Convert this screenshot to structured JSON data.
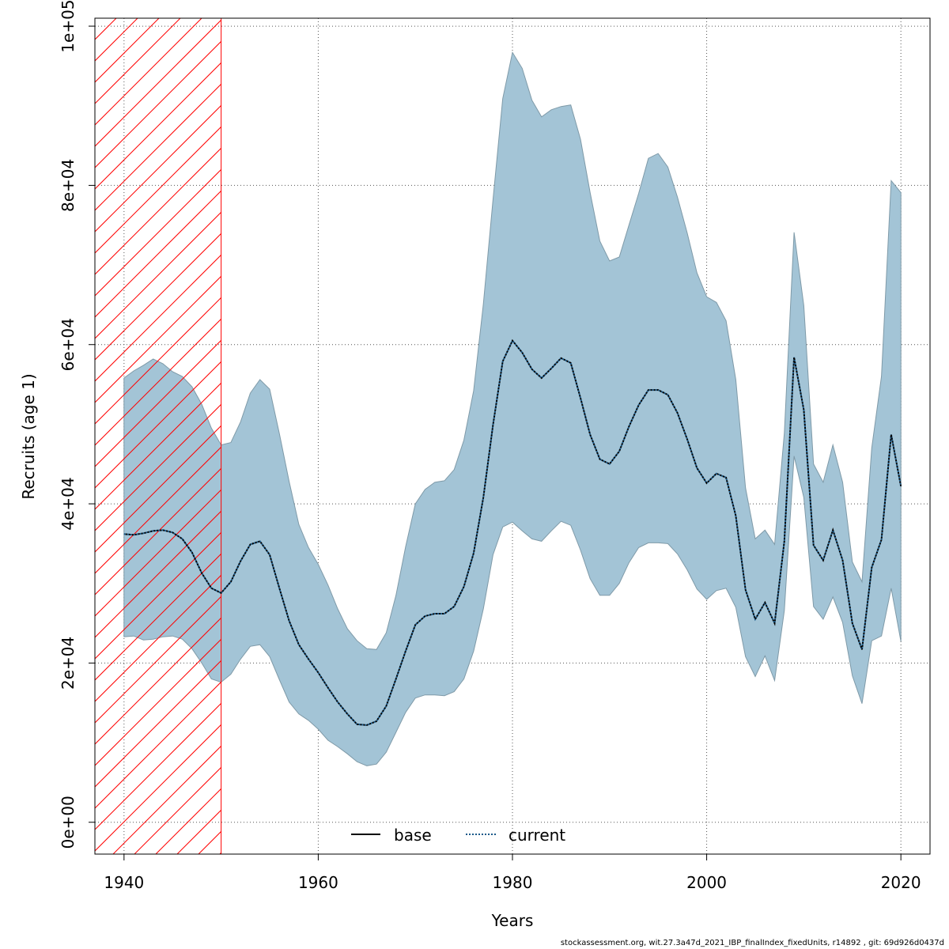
{
  "chart_data": {
    "type": "area",
    "title": "",
    "xlabel": "Years",
    "ylabel": "Recruits (age 1)",
    "xlim": [
      1937,
      2023
    ],
    "ylim": [
      -4000,
      101000
    ],
    "x_ticks": [
      1940,
      1960,
      1980,
      2000,
      2020
    ],
    "x_tick_labels": [
      "1940",
      "1960",
      "1980",
      "2000",
      "2020"
    ],
    "y_ticks": [
      0,
      20000,
      40000,
      60000,
      80000,
      100000
    ],
    "y_tick_labels": [
      "0e+00",
      "2e+04",
      "4e+04",
      "6e+04",
      "8e+04",
      "1e+05"
    ],
    "grid": true,
    "colors": {
      "band": "#a3c4d6",
      "band_edge": "#7f9aa8",
      "current_line": "#1a5a8a",
      "base_line": "#000000",
      "hatch": "#ff0000",
      "grid": "#555555"
    },
    "shaded_region": {
      "x_start": 1937,
      "x_end": 1950,
      "pattern": "hatched"
    },
    "legend": {
      "position": "bottom-center",
      "entries": [
        {
          "label": "base",
          "style": "solid"
        },
        {
          "label": "current",
          "style": "dotted"
        }
      ]
    },
    "years": [
      1940,
      1941,
      1942,
      1943,
      1944,
      1945,
      1946,
      1947,
      1948,
      1949,
      1950,
      1951,
      1952,
      1953,
      1954,
      1955,
      1956,
      1957,
      1958,
      1959,
      1960,
      1961,
      1962,
      1963,
      1964,
      1965,
      1966,
      1967,
      1968,
      1969,
      1970,
      1971,
      1972,
      1973,
      1974,
      1975,
      1976,
      1977,
      1978,
      1979,
      1980,
      1981,
      1982,
      1983,
      1984,
      1985,
      1986,
      1987,
      1988,
      1989,
      1990,
      1991,
      1992,
      1993,
      1994,
      1995,
      1996,
      1997,
      1998,
      1999,
      2000,
      2001,
      2002,
      2003,
      2004,
      2005,
      2006,
      2007,
      2008,
      2009,
      2010,
      2011,
      2012,
      2013,
      2014,
      2015,
      2016,
      2017,
      2018,
      2019,
      2020
    ],
    "series": [
      {
        "name": "current",
        "values": [
          36200,
          36100,
          36300,
          36600,
          36700,
          36400,
          35600,
          33900,
          31300,
          29400,
          28800,
          30200,
          32800,
          34900,
          35300,
          33600,
          29400,
          25300,
          22300,
          20500,
          18800,
          16900,
          15100,
          13600,
          12300,
          12200,
          12700,
          14600,
          18000,
          21500,
          24800,
          25900,
          26200,
          26200,
          27100,
          29600,
          33800,
          40800,
          49900,
          57900,
          60500,
          59000,
          56900,
          55800,
          57000,
          58300,
          57700,
          53300,
          48700,
          45600,
          45000,
          46600,
          49700,
          52400,
          54300,
          54300,
          53700,
          51400,
          48100,
          44500,
          42600,
          43800,
          43300,
          38500,
          29200,
          25500,
          27600,
          25000,
          35300,
          58400,
          51800,
          34800,
          32900,
          36700,
          32900,
          25000,
          21700,
          32000,
          35500,
          48700,
          42200
        ]
      },
      {
        "name": "upper",
        "values": [
          55800,
          56700,
          57400,
          58200,
          57600,
          56600,
          56000,
          54700,
          52500,
          49500,
          47400,
          47700,
          50300,
          53900,
          55600,
          54400,
          48800,
          42800,
          37400,
          34500,
          32400,
          29800,
          26800,
          24300,
          22800,
          21800,
          21700,
          23800,
          28500,
          34600,
          40000,
          41800,
          42700,
          42900,
          44300,
          48000,
          54200,
          65100,
          78200,
          90900,
          96700,
          94700,
          90700,
          88600,
          89500,
          89900,
          90100,
          85800,
          79100,
          73000,
          70500,
          71000,
          75000,
          79000,
          83400,
          84000,
          82300,
          78500,
          74000,
          69000,
          66000,
          65300,
          63000,
          55600,
          42000,
          35600,
          36700,
          34900,
          48900,
          74100,
          64900,
          45000,
          42700,
          47400,
          42700,
          32700,
          30200,
          47000,
          56000,
          80600,
          79100
        ]
      },
      {
        "name": "lower",
        "values": [
          23300,
          23400,
          22900,
          23000,
          23300,
          23400,
          23000,
          21800,
          20000,
          18000,
          17600,
          18600,
          20500,
          22100,
          22300,
          20800,
          17900,
          15100,
          13600,
          12800,
          11700,
          10300,
          9500,
          8600,
          7600,
          7100,
          7300,
          8800,
          11300,
          13800,
          15600,
          16000,
          16000,
          15900,
          16400,
          18000,
          21500,
          26800,
          33600,
          37100,
          37700,
          36600,
          35600,
          35300,
          36600,
          37800,
          37300,
          34200,
          30600,
          28500,
          28500,
          30000,
          32600,
          34500,
          35100,
          35100,
          35000,
          33700,
          31700,
          29300,
          28000,
          29100,
          29400,
          27000,
          20800,
          18300,
          20900,
          17800,
          26600,
          46000,
          40800,
          27100,
          25500,
          28300,
          25100,
          18400,
          14900,
          22800,
          23400,
          29400,
          22700
        ]
      }
    ]
  },
  "footer": "stockassessment.org, wit.27.3a47d_2021_IBP_finalIndex_fixedUnits, r14892 , git: 69d926d0437d"
}
